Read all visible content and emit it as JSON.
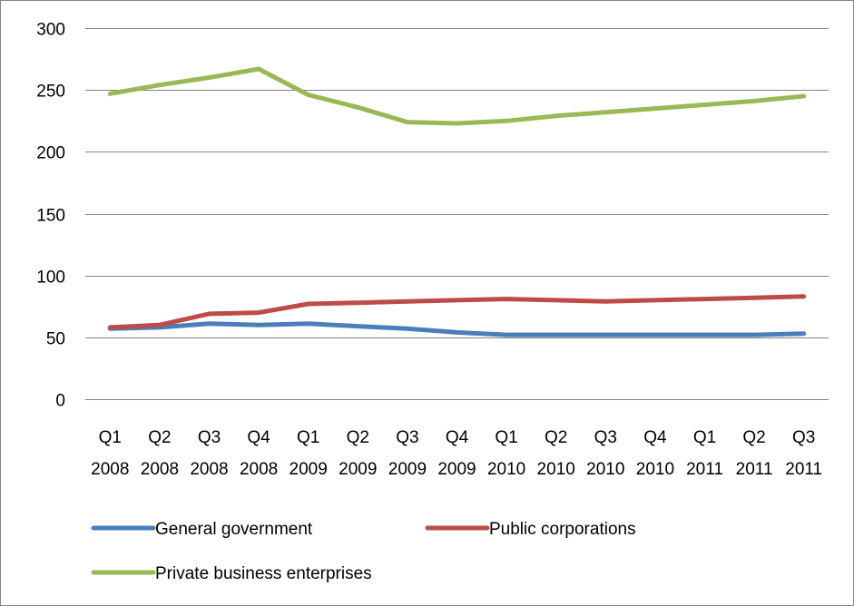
{
  "chart_data": {
    "type": "line",
    "title": "",
    "xlabel": "",
    "ylabel": "",
    "categories": [
      [
        "Q1",
        "2008"
      ],
      [
        "Q2",
        "2008"
      ],
      [
        "Q3",
        "2008"
      ],
      [
        "Q4",
        "2008"
      ],
      [
        "Q1",
        "2009"
      ],
      [
        "Q2",
        "2009"
      ],
      [
        "Q3",
        "2009"
      ],
      [
        "Q4",
        "2009"
      ],
      [
        "Q1",
        "2010"
      ],
      [
        "Q2",
        "2010"
      ],
      [
        "Q3",
        "2010"
      ],
      [
        "Q4",
        "2010"
      ],
      [
        "Q1",
        "2011"
      ],
      [
        "Q2",
        "2011"
      ],
      [
        "Q3",
        "2011"
      ]
    ],
    "ylim": [
      0,
      300
    ],
    "yticks": [
      0,
      50,
      100,
      150,
      200,
      250,
      300
    ],
    "grid": true,
    "legend_position": "bottom",
    "series": [
      {
        "name": "General government",
        "color": "#4a7ebb",
        "values": [
          57,
          58,
          61,
          60,
          61,
          59,
          57,
          54,
          52,
          52,
          52,
          52,
          52,
          52,
          53
        ]
      },
      {
        "name": "Public corporations",
        "color": "#be4b48",
        "values": [
          58,
          60,
          69,
          70,
          77,
          78,
          79,
          80,
          81,
          80,
          79,
          80,
          81,
          82,
          83
        ]
      },
      {
        "name": "Private business enterprises",
        "color": "#98b954",
        "values": [
          247,
          254,
          260,
          267,
          246,
          236,
          224,
          223,
          225,
          229,
          232,
          235,
          238,
          241,
          245
        ]
      }
    ]
  }
}
